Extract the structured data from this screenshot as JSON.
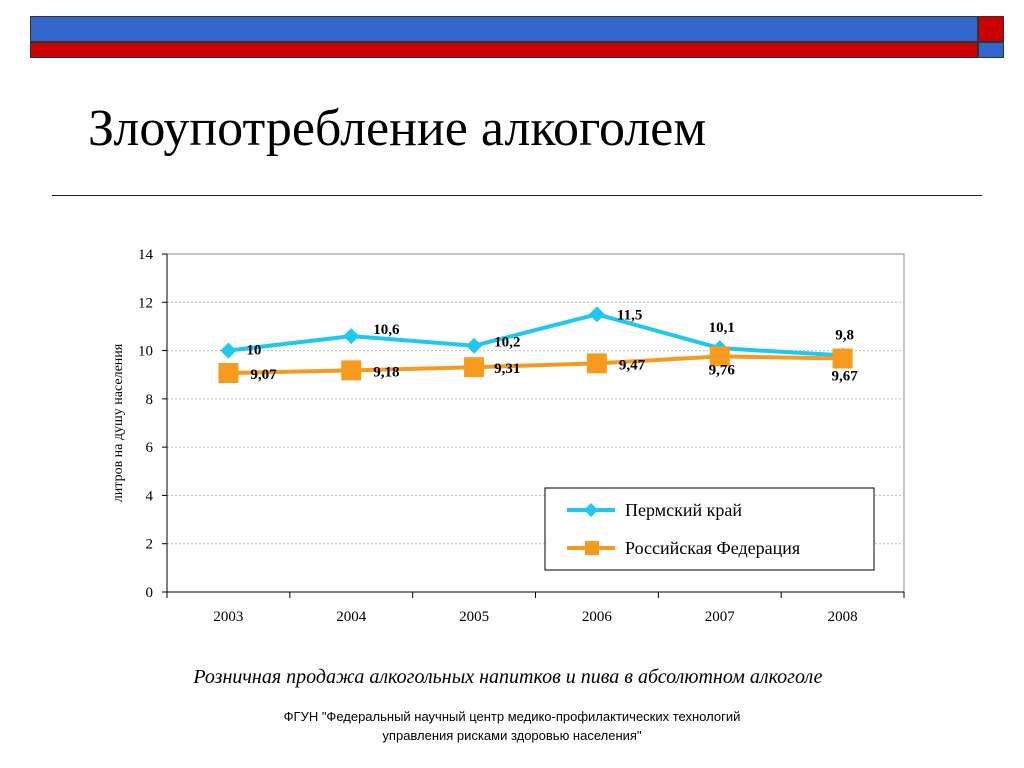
{
  "slide": {
    "title": "Злоупотребление алкоголем",
    "caption": "Розничная продажа алкогольных напитков и пива в абсолютном алкоголе",
    "footer_line1": "ФГУН \"Федеральный научный центр медико-профилактических технологий",
    "footer_line2": "управления рисками здоровью населения\""
  },
  "colors": {
    "header_blue": "#3366CC",
    "header_red": "#CC0000",
    "series_perm": "#1EC8F0",
    "series_rf": "#F79B1E"
  },
  "chart_data": {
    "type": "line",
    "title": "",
    "xlabel": "",
    "ylabel": "литров на душу населения",
    "categories": [
      "2003",
      "2004",
      "2005",
      "2006",
      "2007",
      "2008"
    ],
    "ylim": [
      0,
      14
    ],
    "yticks": [
      0,
      2,
      4,
      6,
      8,
      10,
      12,
      14
    ],
    "grid": true,
    "legend_position": "bottom-right",
    "series": [
      {
        "name": "Пермский край",
        "marker": "diamond",
        "values": [
          10,
          10.6,
          10.2,
          11.5,
          10.1,
          9.8
        ],
        "labels": [
          "10",
          "10,6",
          "10,2",
          "11,5",
          "10,1",
          "9,8"
        ]
      },
      {
        "name": "Российская Федерация",
        "marker": "square",
        "values": [
          9.07,
          9.18,
          9.31,
          9.47,
          9.76,
          9.67
        ],
        "labels": [
          "9,07",
          "9,18",
          "9,31",
          "9,47",
          "9,76",
          "9,67"
        ]
      }
    ]
  }
}
